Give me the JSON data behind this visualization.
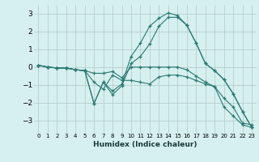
{
  "bg_color": "#d6f0ef",
  "grid_color": "#b0c8c8",
  "line_color": "#2a7a72",
  "marker": "+",
  "xlabel": "Humidex (Indice chaleur)",
  "xlim": [
    -0.5,
    23.5
  ],
  "ylim": [
    -3.7,
    3.5
  ],
  "yticks": [
    -3,
    -2,
    -1,
    0,
    1,
    2,
    3
  ],
  "series": [
    [
      0.1,
      0.0,
      -0.05,
      -0.05,
      -0.15,
      -0.2,
      -0.35,
      -0.35,
      -0.25,
      -0.6,
      0.0,
      0.0,
      0.0,
      0.0,
      0.0,
      0.0,
      -0.15,
      -0.5,
      -0.85,
      -1.1,
      -1.75,
      -2.25,
      -3.15,
      -3.25
    ],
    [
      0.1,
      0.0,
      -0.05,
      -0.05,
      -0.15,
      -0.2,
      -0.85,
      -1.25,
      -0.45,
      -0.75,
      -0.75,
      -0.85,
      -0.95,
      -0.55,
      -0.45,
      -0.45,
      -0.55,
      -0.75,
      -0.95,
      -1.1,
      -2.25,
      -2.75,
      -3.25,
      -3.4
    ],
    [
      0.1,
      0.0,
      -0.05,
      -0.05,
      -0.15,
      -0.2,
      -2.05,
      -0.85,
      -1.55,
      -1.05,
      0.2,
      0.6,
      1.3,
      2.3,
      2.8,
      2.8,
      2.35,
      1.35,
      0.2,
      -0.2,
      -0.7,
      -1.5,
      -2.5,
      -3.4
    ],
    [
      0.1,
      0.0,
      -0.05,
      -0.05,
      -0.15,
      -0.2,
      -2.05,
      -0.85,
      -1.35,
      -0.95,
      0.6,
      1.35,
      2.3,
      2.75,
      3.05,
      2.9,
      2.35,
      1.35,
      0.2,
      -0.2,
      -0.7,
      -1.5,
      -2.5,
      -3.4
    ]
  ]
}
